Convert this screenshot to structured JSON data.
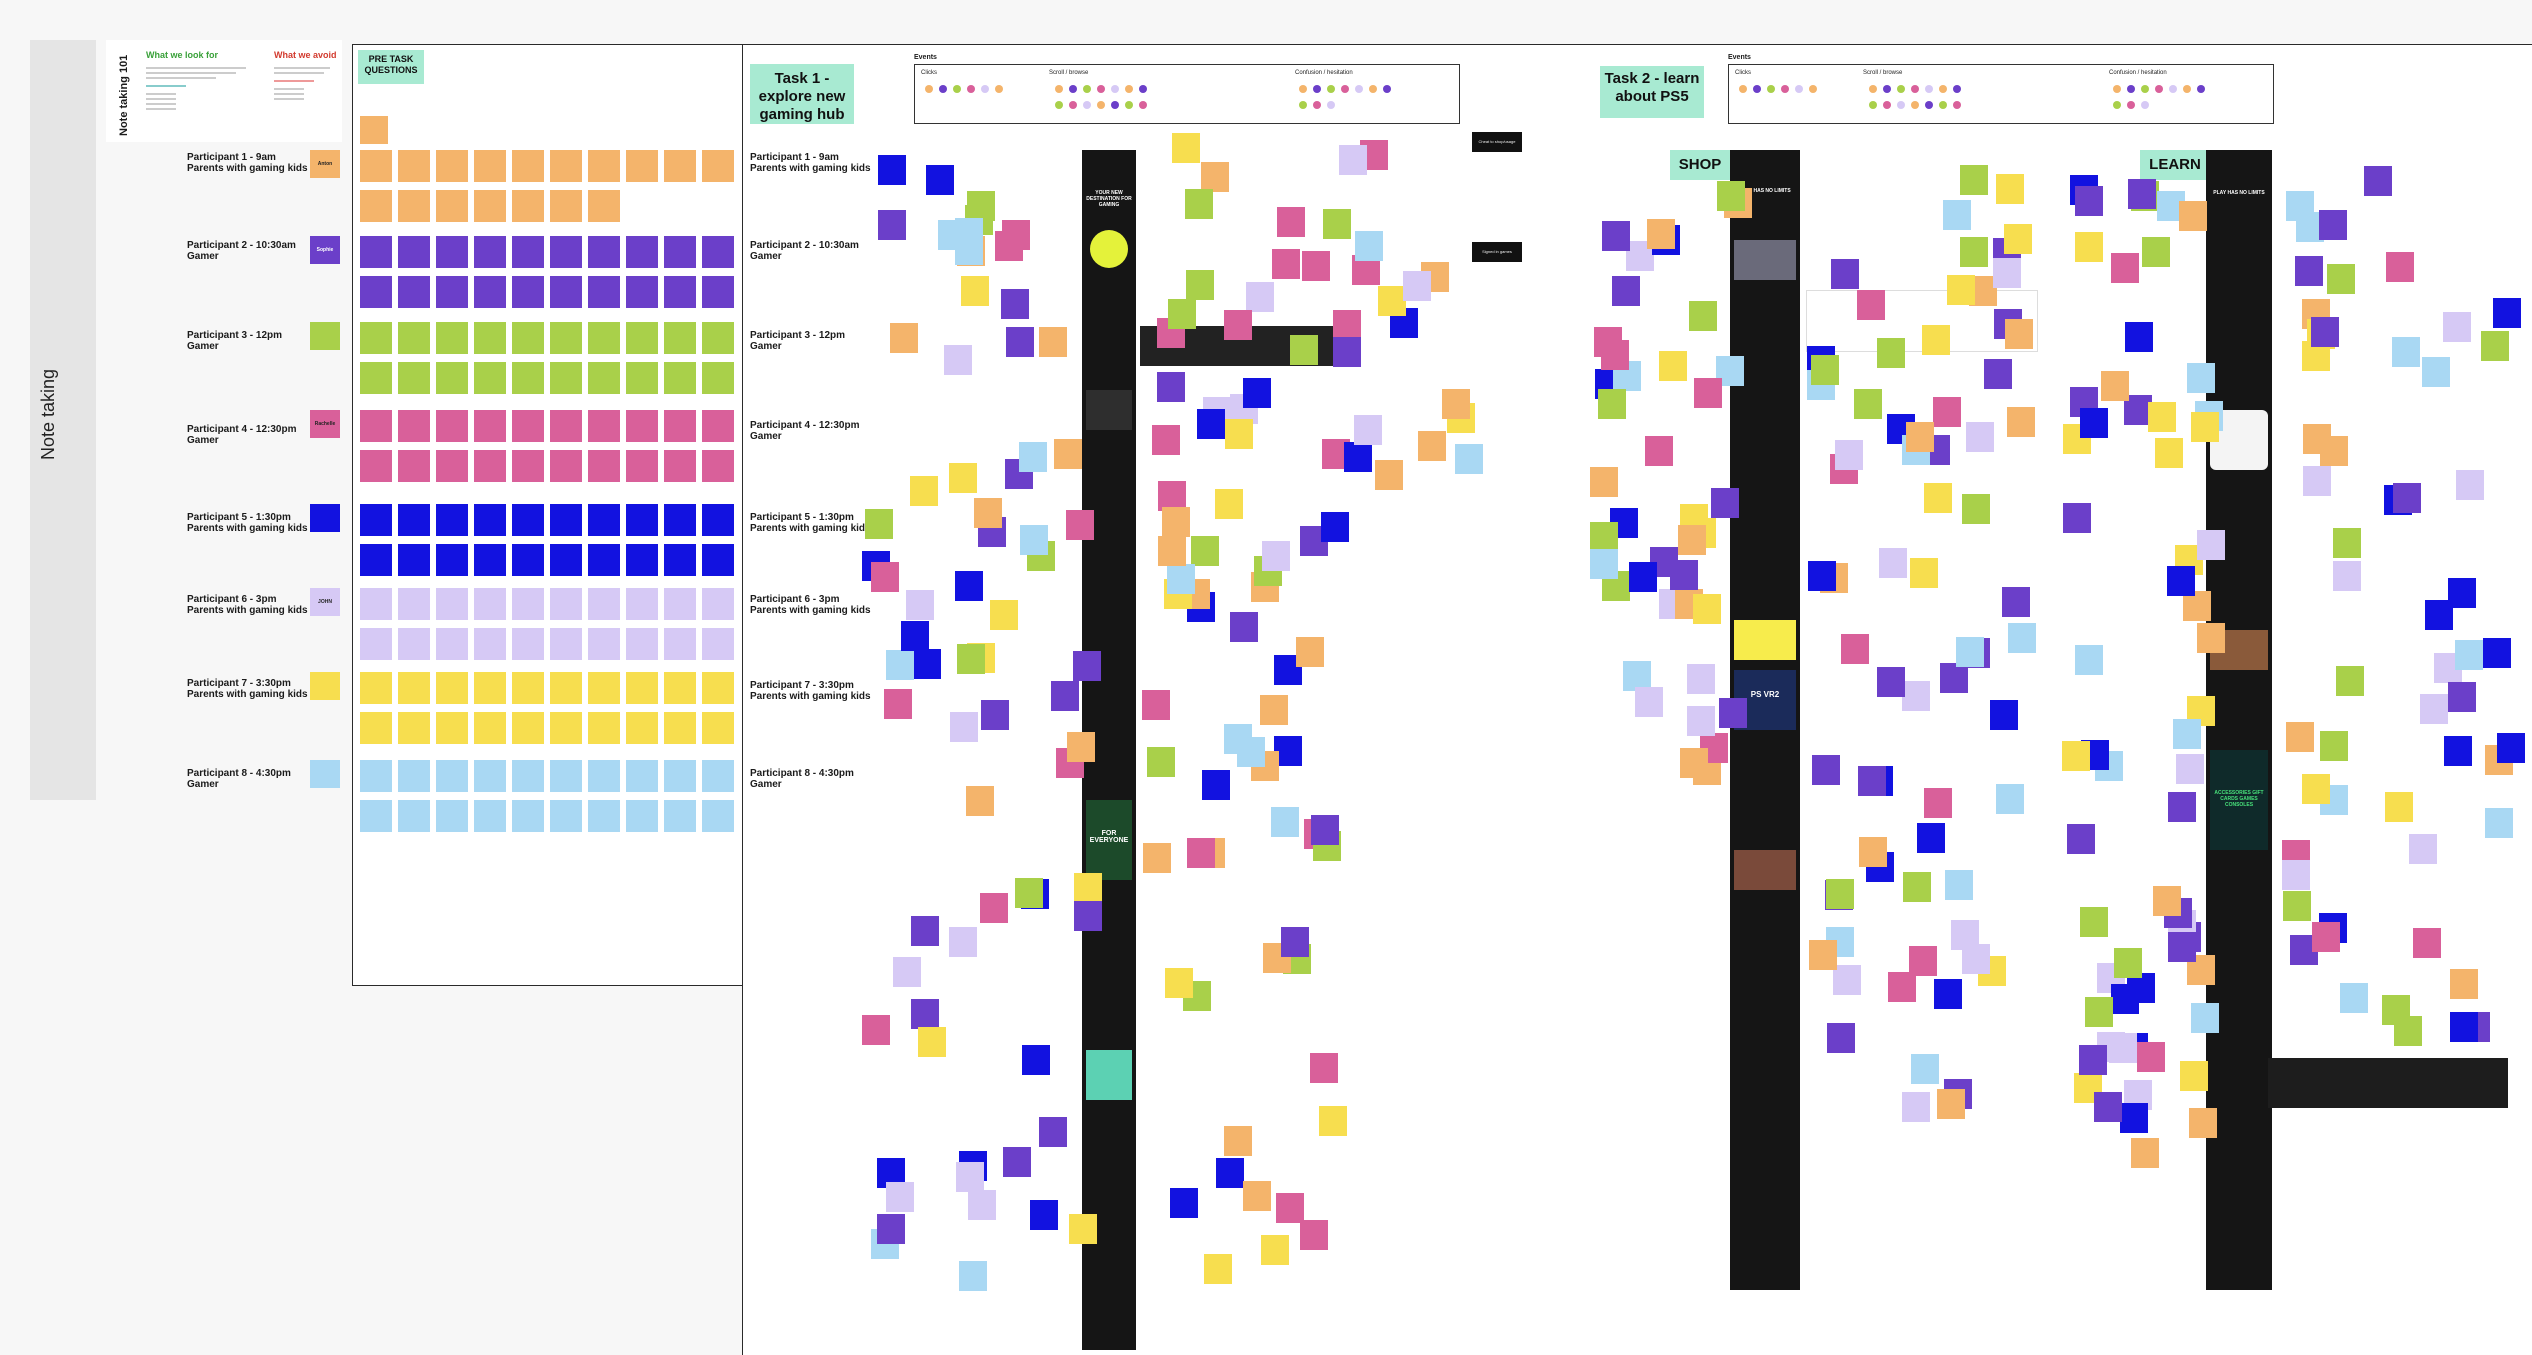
{
  "sidebar": {
    "label": "Note taking"
  },
  "note_101": {
    "vertical_title": "Note taking 101",
    "look_for": "What we look for",
    "avoid": "What we avoid"
  },
  "pre_task": {
    "title": "PRE TASK QUESTIONS"
  },
  "participants_left": [
    {
      "name": "Participant 1 - 9am",
      "role": "Parents with gaming kids"
    },
    {
      "name": "Participant 2 - 10:30am",
      "role": "Gamer"
    },
    {
      "name": "Participant 3 - 12pm",
      "role": "Gamer"
    },
    {
      "name": "Participant 4 - 12:30pm",
      "role": "Gamer"
    },
    {
      "name": "Participant 5 - 1:30pm",
      "role": "Parents with gaming kids"
    },
    {
      "name": "Participant 6 - 3pm",
      "role": "Parents with gaming kids"
    },
    {
      "name": "Participant 7 - 3:30pm",
      "role": "Parents with gaming kids"
    },
    {
      "name": "Participant 8 - 4:30pm",
      "role": "Gamer"
    }
  ],
  "participant_tags": [
    "Anton",
    "Sophie",
    "",
    "Rachelle",
    "",
    "JOHN",
    "",
    ""
  ],
  "task1": {
    "title": "Task 1 - explore new gaming hub",
    "participants": [
      {
        "name": "Participant 1 - 9am",
        "role": "Parents with gaming kids"
      },
      {
        "name": "Participant 2 - 10:30am",
        "role": "Gamer"
      },
      {
        "name": "Participant 3 - 12pm",
        "role": "Gamer"
      },
      {
        "name": "Participant 4 - 12:30pm",
        "role": "Gamer"
      },
      {
        "name": "Participant 5 - 1:30pm",
        "role": "Parents with gaming kids"
      },
      {
        "name": "Participant 6 - 3pm",
        "role": "Parents with gaming kids"
      },
      {
        "name": "Participant 7 - 3:30pm",
        "role": "Parents with gaming kids"
      },
      {
        "name": "Participant 8 - 4:30pm",
        "role": "Gamer"
      }
    ],
    "events_title": "Events",
    "events": [
      "Clicks",
      "Scroll / browse",
      "Confusion / hesitation"
    ],
    "side_buttons": [
      "Cheat to shop/usage",
      "Signed in games"
    ],
    "phone_headline": "YOUR NEW DESTINATION FOR GAMING",
    "phone_banner": "FOR EVERYONE"
  },
  "task2": {
    "title": "Task 2 - learn about PS5",
    "events_title": "Events",
    "events": [
      "Clicks",
      "Scroll / browse",
      "Confusion / hesitation"
    ],
    "shop_label": "SHOP",
    "learn_label": "LEARN",
    "phone_headline": "PLAY HAS NO LIMITS",
    "phone_banner_psvr": "PS VR2",
    "phone_banner_gift": "ACCESSORIES GIFT CARDS GAMES CONSOLES"
  },
  "colors": {
    "orange": "#f4b46b",
    "purple": "#6b3fc9",
    "lime": "#a9d04a",
    "pink": "#d9609a",
    "blue": "#1212e0",
    "lavender": "#d6c9f5",
    "yellow": "#f7de4f",
    "sky": "#a9d8f3",
    "mint": "#a8ead2"
  }
}
